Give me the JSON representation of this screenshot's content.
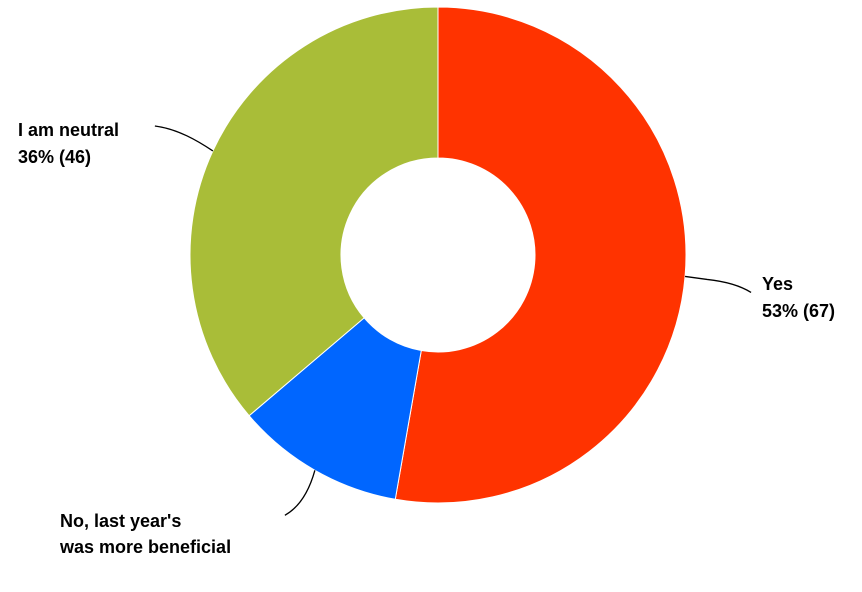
{
  "chart_data": {
    "type": "pie",
    "donut": true,
    "slices": [
      {
        "label": "Yes",
        "percent_label": "53% (67)",
        "value": 67,
        "color": "#ff3300"
      },
      {
        "label": "No, last year's was more beneficial",
        "label_lines": [
          "No, last year's",
          "was more beneficial"
        ],
        "value": 14,
        "color": "#0066ff"
      },
      {
        "label": "I am neutral",
        "percent_label": "36% (46)",
        "value": 46,
        "color": "#a9bd38"
      }
    ]
  }
}
